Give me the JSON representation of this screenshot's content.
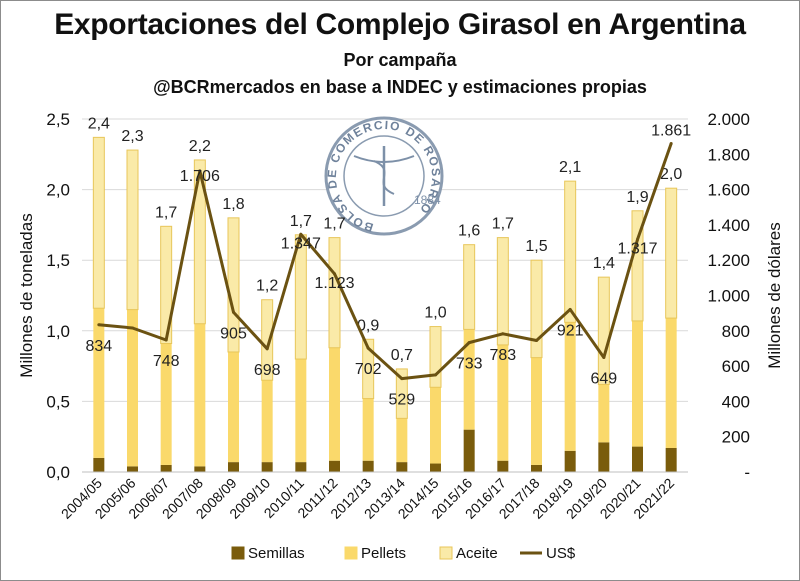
{
  "titles": {
    "main": "Exportaciones del Complejo Girasol en Argentina",
    "subtitle": "Por campaña",
    "source": "@BCRmercados en base a INDEC y estimaciones propias"
  },
  "watermark": "BOLSA DE COMERCIO DE ROSARIO",
  "colors": {
    "semillas": "#7a5c0c",
    "pellets": "#fad96b",
    "aceite": "#faeaa8",
    "aceite_border": "#e8c65a",
    "usd": "#6b5212"
  },
  "chart_data": {
    "type": "bar",
    "stacked": true,
    "categories": [
      "2004/05",
      "2005/06",
      "2006/07",
      "2007/08",
      "2008/09",
      "2009/10",
      "2010/11",
      "2011/12",
      "2012/13",
      "2013/14",
      "2014/15",
      "2015/16",
      "2016/17",
      "2017/18",
      "2018/19",
      "2019/20",
      "2020/21",
      "2021/22"
    ],
    "series": [
      {
        "name": "Semillas",
        "values": [
          0.1,
          0.04,
          0.05,
          0.04,
          0.07,
          0.07,
          0.07,
          0.08,
          0.08,
          0.07,
          0.06,
          0.3,
          0.08,
          0.05,
          0.15,
          0.21,
          0.18,
          0.17
        ]
      },
      {
        "name": "Pellets",
        "values": [
          1.06,
          1.11,
          0.86,
          1.01,
          0.78,
          0.58,
          0.73,
          0.8,
          0.44,
          0.31,
          0.54,
          0.71,
          0.82,
          0.76,
          0.91,
          0.41,
          0.89,
          0.92
        ]
      },
      {
        "name": "Aceite",
        "values": [
          1.21,
          1.13,
          0.83,
          1.16,
          0.95,
          0.57,
          0.88,
          0.78,
          0.42,
          0.35,
          0.43,
          0.6,
          0.76,
          0.69,
          1.0,
          0.76,
          0.78,
          0.92
        ]
      }
    ],
    "totals": [
      "2,4",
      "2,3",
      "1,7",
      "2,2",
      "1,8",
      "1,2",
      "1,7",
      "1,7",
      "0,9",
      "0,7",
      "1,0",
      "1,6",
      "1,7",
      "1,5",
      "2,1",
      "1,4",
      "1,9",
      "2,0"
    ],
    "line_series": {
      "name": "US$",
      "axis": "right",
      "values": [
        834,
        816,
        748,
        1706,
        905,
        698,
        1347,
        1123,
        702,
        529,
        550,
        733,
        783,
        745,
        921,
        649,
        1317,
        1861
      ]
    },
    "line_labels": [
      "834",
      "",
      "748",
      "1.706",
      "905",
      "698",
      "1.347",
      "1.123",
      "702",
      "529",
      "",
      "733",
      "783",
      "",
      "921",
      "649",
      "1.317",
      "1.861"
    ],
    "ylabel_left": "Millones de toneladas",
    "ylabel_right": "Millones de dólares",
    "ylim_left": [
      0,
      2.5
    ],
    "ylim_right": [
      0,
      2000
    ],
    "yticks_left": [
      "0,0",
      "0,5",
      "1,0",
      "1,5",
      "2,0",
      "2,5"
    ],
    "yticks_right": [
      "-",
      "200",
      "400",
      "600",
      "800",
      "1.000",
      "1.200",
      "1.400",
      "1.600",
      "1.800",
      "2.000"
    ],
    "legend": [
      "Semillas",
      "Pellets",
      "Aceite",
      "US$"
    ],
    "legend_position": "bottom",
    "grid": true
  }
}
